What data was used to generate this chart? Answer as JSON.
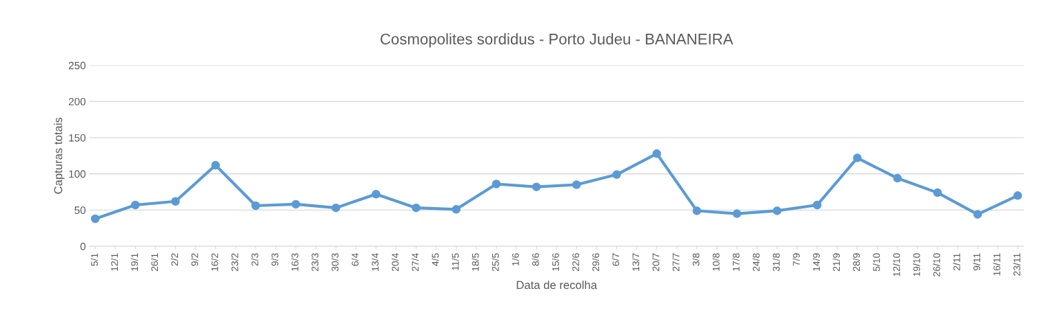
{
  "chart_data": {
    "type": "line",
    "title": "Cosmopolites sordidus - Porto Judeu - BANANEIRA",
    "xlabel": "Data de recolha",
    "ylabel": "Capturas totais",
    "categories": [
      "5/1",
      "12/1",
      "19/1",
      "26/1",
      "2/2",
      "9/2",
      "16/2",
      "23/2",
      "2/3",
      "9/3",
      "16/3",
      "23/3",
      "30/3",
      "6/4",
      "13/4",
      "20/4",
      "27/4",
      "4/5",
      "11/5",
      "18/5",
      "25/5",
      "1/6",
      "8/6",
      "15/6",
      "22/6",
      "29/6",
      "6/7",
      "13/7",
      "20/7",
      "27/7",
      "3/8",
      "10/8",
      "17/8",
      "24/8",
      "31/8",
      "7/9",
      "14/9",
      "21/9",
      "28/9",
      "5/10",
      "12/10",
      "19/10",
      "26/10",
      "2/11",
      "9/11",
      "16/11",
      "23/11"
    ],
    "series": [
      {
        "color": "#5b9bd5",
        "values": [
          38,
          null,
          57,
          null,
          62,
          null,
          112,
          null,
          56,
          null,
          58,
          null,
          53,
          null,
          72,
          null,
          53,
          null,
          51,
          null,
          86,
          null,
          82,
          null,
          85,
          null,
          99,
          null,
          128,
          null,
          49,
          null,
          45,
          null,
          49,
          null,
          57,
          null,
          122,
          null,
          94,
          null,
          74,
          null,
          44,
          null,
          70
        ]
      }
    ],
    "ylim": [
      0,
      250
    ],
    "yticks": [
      0,
      50,
      100,
      150,
      200,
      250
    ],
    "grid": "y",
    "marker": "circle",
    "line_style": "solid"
  }
}
